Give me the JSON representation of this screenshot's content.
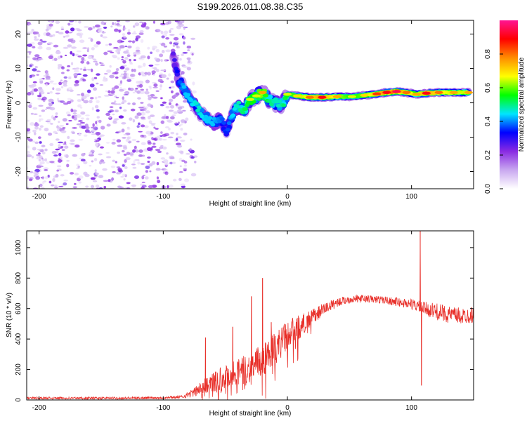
{
  "title": "S199.2026.011.08.38.C35",
  "chart_data": [
    {
      "type": "heatmap",
      "xlabel": "Height of straight line (km)",
      "ylabel": "Frequency (Hz)",
      "xlim": [
        -210,
        150
      ],
      "ylim": [
        -25,
        24
      ],
      "xticks": [
        -200,
        -100,
        0,
        100
      ],
      "yticks": [
        -20,
        -10,
        0,
        10,
        20
      ],
      "colorbar": {
        "label": "Normalized spectral amplitude",
        "range": [
          0,
          1
        ],
        "ticks": [
          "0.0",
          "0.2",
          "0.4",
          "0.6",
          "0.8"
        ],
        "tick_values": [
          0,
          0.2,
          0.4,
          0.6,
          0.8
        ],
        "stops": [
          "#ffffff",
          "#c9a8f0",
          "#8a2be2",
          "#0000ff",
          "#00e5ff",
          "#00ff00",
          "#ffff00",
          "#ff8c00",
          "#ff0000",
          "#ff1493"
        ]
      },
      "noise_region_x": [
        -210,
        -82
      ],
      "trace": [
        {
          "x": -92,
          "y": 14,
          "a": 0.25
        },
        {
          "x": -88,
          "y": 7,
          "a": 0.35
        },
        {
          "x": -83,
          "y": 4,
          "a": 0.45
        },
        {
          "x": -78,
          "y": 1,
          "a": 0.45
        },
        {
          "x": -72,
          "y": -2,
          "a": 0.5
        },
        {
          "x": -66,
          "y": -4,
          "a": 0.45
        },
        {
          "x": -60,
          "y": -6,
          "a": 0.45
        },
        {
          "x": -54,
          "y": -5,
          "a": 0.4
        },
        {
          "x": -49,
          "y": -8,
          "a": 0.35
        },
        {
          "x": -45,
          "y": -4,
          "a": 0.45
        },
        {
          "x": -40,
          "y": -1,
          "a": 0.5
        },
        {
          "x": -35,
          "y": -2,
          "a": 0.55
        },
        {
          "x": -30,
          "y": 1,
          "a": 0.6
        },
        {
          "x": -25,
          "y": 2,
          "a": 0.6
        },
        {
          "x": -20,
          "y": 3,
          "a": 0.7
        },
        {
          "x": -15,
          "y": 1,
          "a": 0.55
        },
        {
          "x": -10,
          "y": 0,
          "a": 0.5
        },
        {
          "x": -5,
          "y": -1,
          "a": 0.5
        },
        {
          "x": 0,
          "y": 2.5,
          "a": 0.6
        },
        {
          "x": 8,
          "y": 2,
          "a": 0.65
        },
        {
          "x": 18,
          "y": 1.6,
          "a": 0.75
        },
        {
          "x": 28,
          "y": 1.6,
          "a": 0.85
        },
        {
          "x": 40,
          "y": 1.8,
          "a": 0.7
        },
        {
          "x": 52,
          "y": 1.8,
          "a": 0.6
        },
        {
          "x": 62,
          "y": 2.2,
          "a": 0.65
        },
        {
          "x": 72,
          "y": 2.6,
          "a": 0.8
        },
        {
          "x": 80,
          "y": 3.0,
          "a": 0.85
        },
        {
          "x": 88,
          "y": 3.3,
          "a": 0.9
        },
        {
          "x": 96,
          "y": 3.0,
          "a": 0.75
        },
        {
          "x": 104,
          "y": 2.5,
          "a": 0.7
        },
        {
          "x": 112,
          "y": 2.8,
          "a": 0.85
        },
        {
          "x": 122,
          "y": 3.0,
          "a": 0.75
        },
        {
          "x": 134,
          "y": 3.0,
          "a": 0.7
        },
        {
          "x": 146,
          "y": 3.0,
          "a": 0.7
        }
      ]
    },
    {
      "type": "line",
      "xlabel": "Height of straight line (km)",
      "ylabel": "SNR (10 * v/v)",
      "xlim": [
        -210,
        150
      ],
      "ylim": [
        0,
        1110
      ],
      "xticks": [
        -200,
        -100,
        0,
        100
      ],
      "yticks": [
        0,
        200,
        400,
        600,
        800,
        1000
      ],
      "color": "#e8302a",
      "envelope": {
        "x": [
          -210,
          -130,
          -100,
          -85,
          -75,
          -65,
          -55,
          -45,
          -38,
          -30,
          -20,
          -10,
          0,
          10,
          20,
          30,
          40,
          50,
          60,
          70,
          80,
          90,
          100,
          110,
          120,
          130,
          140,
          150
        ],
        "mean": [
          12,
          12,
          15,
          20,
          50,
          100,
          140,
          170,
          190,
          210,
          260,
          340,
          420,
          480,
          540,
          600,
          640,
          660,
          665,
          660,
          655,
          640,
          630,
          600,
          580,
          560,
          550,
          560
        ],
        "noise": [
          8,
          8,
          8,
          10,
          30,
          55,
          75,
          85,
          90,
          100,
          110,
          110,
          100,
          80,
          55,
          40,
          30,
          25,
          25,
          25,
          25,
          30,
          35,
          45,
          55,
          55,
          55,
          55
        ]
      },
      "spikes": [
        {
          "x": -66,
          "y": 410
        },
        {
          "x": -44,
          "y": 480
        },
        {
          "x": -29,
          "y": 680
        },
        {
          "x": -20,
          "y": 800
        },
        {
          "x": -13,
          "y": 510
        },
        {
          "x": 107,
          "y": 1110
        },
        {
          "x": 108,
          "y": 95
        }
      ]
    }
  ]
}
